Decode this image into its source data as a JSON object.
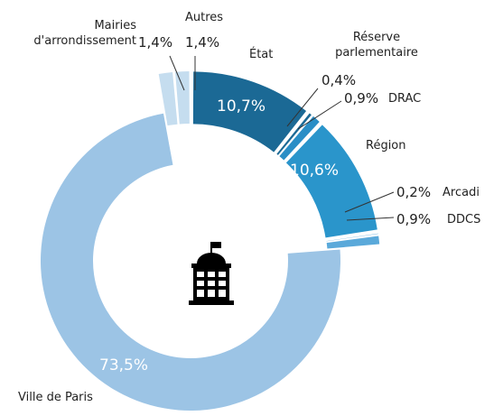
{
  "chart_data": {
    "type": "pie",
    "donut": true,
    "categories": [
      "État",
      "Réserve parlementaire",
      "DRAC",
      "Région",
      "Arcadi",
      "DDCS",
      "Ville de Paris",
      "Mairies d'arrondissement",
      "Autres"
    ],
    "values": [
      10.7,
      0.4,
      0.9,
      10.6,
      0.2,
      0.9,
      73.5,
      1.4,
      1.4
    ],
    "value_labels": [
      "10,7%",
      "0,4%",
      "0,9%",
      "10,6%",
      "0,2%",
      "0,9%",
      "73,5%",
      "1,4%",
      "1,4%"
    ],
    "colors": [
      "#1b6995",
      "#1b6995",
      "#2a8ec6",
      "#2a95cb",
      "#5aa9da",
      "#5aa9da",
      "#9cc4e5",
      "#c5ddef",
      "#c5ddef"
    ]
  }
}
